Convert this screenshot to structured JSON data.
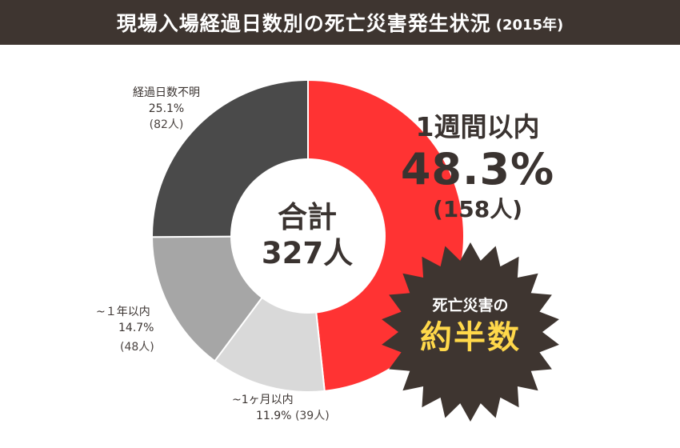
{
  "header": {
    "title": "現場入場経過日数別の死亡災害発生状況",
    "year": "(2015年)"
  },
  "center": {
    "title": "合計",
    "total": "327人"
  },
  "callout": {
    "line1": "死亡災害の",
    "line2": "約半数"
  },
  "colors": {
    "header_bg": "#3e3530",
    "slice_red": "#ff3333",
    "slice_light": "#d9d9d9",
    "slice_mid": "#a6a6a6",
    "slice_dark": "#4a4a4a",
    "badge": "#3e3530",
    "badge_highlight": "#ffd84a"
  },
  "chart_data": {
    "type": "pie",
    "title": "現場入場経過日数別の死亡災害発生状況",
    "subtitle": "(2015年)",
    "total": 327,
    "unit": "人",
    "slices": [
      {
        "name": "1週間以内",
        "percent": 48.3,
        "count": 158,
        "percent_label": "48.3%",
        "count_label": "(158人)",
        "color": "#ff3333"
      },
      {
        "name": "~1ヶ月以内",
        "percent": 11.9,
        "count": 39,
        "percent_label": "11.9%",
        "count_label": "(39人)",
        "color": "#d9d9d9"
      },
      {
        "name": "~１年以内",
        "percent": 14.7,
        "count": 48,
        "percent_label": "14.7%",
        "count_label": "(48人)",
        "color": "#a6a6a6"
      },
      {
        "name": "経過日数不明",
        "percent": 25.1,
        "count": 82,
        "percent_label": "25.1%",
        "count_label": "(82人)",
        "color": "#4a4a4a"
      }
    ]
  }
}
